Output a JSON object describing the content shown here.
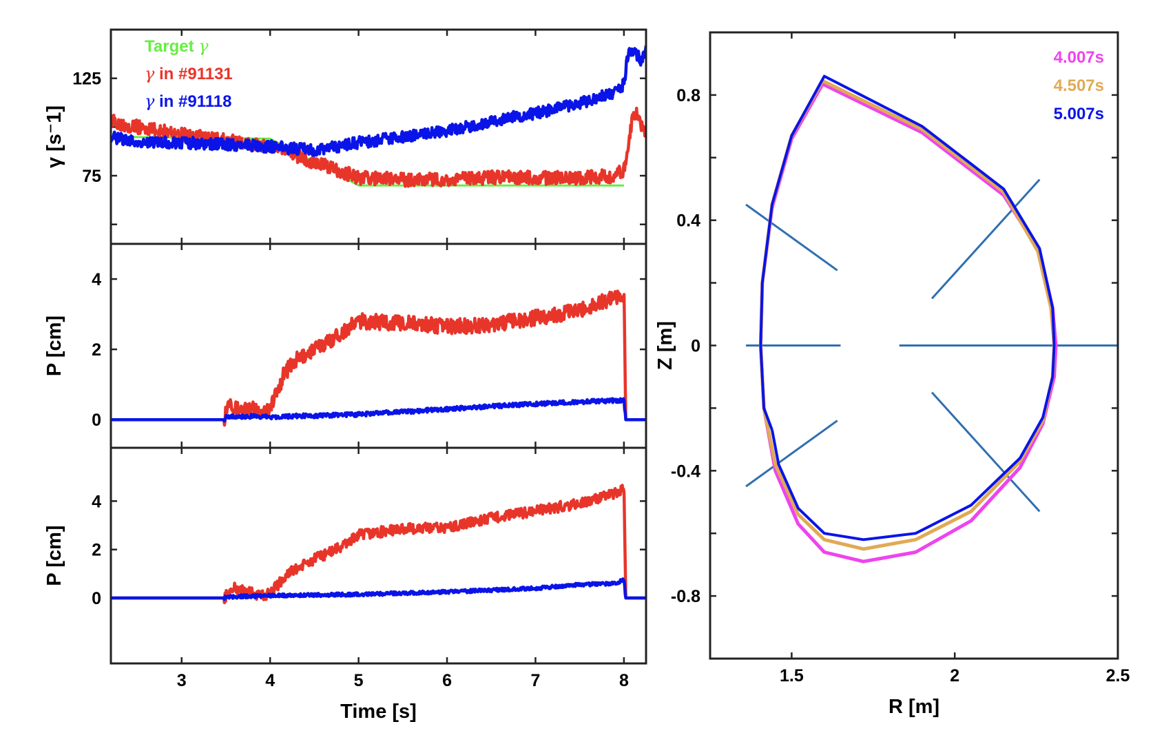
{
  "colors": {
    "red": "#e8352a",
    "blue": "#0a14e8",
    "green": "#66ee44",
    "magenta": "#ee44ee",
    "orange": "#e0aa55",
    "steel": "#2f6fb0"
  },
  "chart_data": [
    {
      "type": "line",
      "xlim": [
        2.2,
        8.25
      ],
      "ylim": [
        40,
        150
      ],
      "xticks": [],
      "yticks": [
        "75",
        "125"
      ],
      "xlabel": "",
      "ylabel": "γ [s⁻1]",
      "legend": {
        "placement": "top-left",
        "entries": [
          {
            "text": "Target",
            "symbol": "γ",
            "color": "#66ee44"
          },
          {
            "symbol": "γ",
            "text": "in #91131",
            "color": "#e8352a"
          },
          {
            "symbol": "γ",
            "text": "in #91118",
            "color": "#0a14e8"
          }
        ]
      },
      "series": [
        {
          "color": "#66ee44",
          "x": [
            2.2,
            4.0,
            4.2,
            4.5,
            4.8,
            5.0,
            8.0
          ],
          "y": [
            95,
            94,
            89,
            82,
            75,
            70,
            70
          ]
        },
        {
          "color": "#e8352a",
          "x": [
            2.2,
            2.5,
            3.0,
            3.5,
            4.0,
            4.5,
            5.0,
            5.5,
            6.0,
            6.5,
            7.0,
            7.5,
            7.9,
            8.0,
            8.05,
            8.1,
            8.15,
            8.2,
            8.25
          ],
          "y": [
            103,
            100,
            96,
            93,
            90,
            82,
            74,
            73,
            73,
            74,
            74,
            74,
            75,
            78,
            90,
            105,
            108,
            100,
            95
          ],
          "noise": 3.5
        },
        {
          "color": "#0a14e8",
          "x": [
            2.2,
            2.5,
            3.0,
            3.5,
            4.0,
            4.5,
            5.0,
            5.5,
            6.0,
            6.5,
            7.0,
            7.5,
            7.9,
            8.0,
            8.05,
            8.1,
            8.2,
            8.25
          ],
          "y": [
            95,
            92,
            92,
            91,
            90,
            88,
            92,
            95,
            98,
            103,
            107,
            112,
            118,
            122,
            138,
            140,
            134,
            140
          ],
          "noise": 3
        }
      ]
    },
    {
      "type": "line",
      "xlim": [
        2.2,
        8.25
      ],
      "ylim": [
        -0.8,
        5
      ],
      "xticks": [],
      "yticks": [
        "0",
        "2",
        "4"
      ],
      "xlabel": "",
      "ylabel": "P [cm]",
      "series": [
        {
          "color": "#e8352a",
          "x": [
            2.2,
            3.48,
            3.5,
            3.55,
            3.6,
            3.7,
            3.8,
            3.9,
            4.0,
            4.1,
            4.15,
            4.3,
            4.5,
            4.7,
            5.0,
            5.5,
            6.0,
            6.5,
            7.0,
            7.5,
            7.9,
            8.0,
            8.02,
            8.25
          ],
          "y": [
            0,
            0,
            0.3,
            0.6,
            0.3,
            0.3,
            0.3,
            0.2,
            0.35,
            0.9,
            1.3,
            1.7,
            2.0,
            2.3,
            2.8,
            2.75,
            2.65,
            2.7,
            2.9,
            3.1,
            3.5,
            3.6,
            0,
            0
          ],
          "noise": 0.22
        },
        {
          "color": "#0a14e8",
          "x": [
            2.2,
            3.48,
            3.5,
            4.0,
            5.0,
            6.0,
            7.0,
            7.5,
            7.9,
            8.0,
            8.02,
            8.25
          ],
          "y": [
            0,
            0,
            0.1,
            0.08,
            0.15,
            0.3,
            0.45,
            0.5,
            0.55,
            0.55,
            0,
            0
          ],
          "noise": 0.06
        }
      ]
    },
    {
      "type": "line",
      "xlim": [
        2.2,
        8.25
      ],
      "ylim": [
        -2.7,
        6.2
      ],
      "xticks": [
        "3",
        "4",
        "5",
        "6",
        "7",
        "8"
      ],
      "yticks": [
        "0",
        "2",
        "4"
      ],
      "xlabel": "Time [s]",
      "ylabel": "P [cm]",
      "series": [
        {
          "color": "#e8352a",
          "x": [
            2.2,
            3.48,
            3.5,
            3.6,
            3.7,
            3.8,
            3.9,
            4.0,
            4.2,
            4.5,
            4.8,
            5.0,
            5.5,
            6.0,
            6.5,
            7.0,
            7.5,
            7.9,
            8.0,
            8.02,
            8.25
          ],
          "y": [
            0,
            0,
            0.1,
            0.4,
            0.3,
            0.2,
            0.1,
            0.2,
            1.0,
            1.6,
            2.1,
            2.6,
            2.85,
            2.9,
            3.3,
            3.6,
            3.9,
            4.3,
            4.5,
            0,
            0
          ],
          "noise": 0.22
        },
        {
          "color": "#0a14e8",
          "x": [
            2.2,
            3.48,
            3.5,
            4.0,
            5.0,
            6.0,
            7.0,
            7.5,
            7.9,
            8.0,
            8.02,
            8.25
          ],
          "y": [
            0,
            0,
            0.05,
            0.1,
            0.15,
            0.25,
            0.4,
            0.55,
            0.6,
            0.75,
            0,
            0
          ],
          "noise": 0.07
        }
      ]
    },
    {
      "type": "line",
      "xlim": [
        1.25,
        2.5
      ],
      "ylim": [
        -1.0,
        1.0
      ],
      "xticks": [
        "1.5",
        "2",
        "2.5"
      ],
      "yticks": [
        "0.8",
        "0.4",
        "0",
        "-0.4",
        "-0.8"
      ],
      "xlabel": "R [m]",
      "ylabel": "Z [m]",
      "legend": {
        "placement": "top-right",
        "entries": [
          {
            "text": "4.007s",
            "color": "#ee44ee"
          },
          {
            "text": "4.507s",
            "color": "#e0aa55"
          },
          {
            "text": "5.007s",
            "color": "#0a14e8"
          }
        ]
      },
      "series": [
        {
          "color": "#ee44ee",
          "points": [
            [
              1.595,
              0.835
            ],
            [
              1.5,
              0.66
            ],
            [
              1.44,
              0.44
            ],
            [
              1.41,
              0.2
            ],
            [
              1.405,
              0.0
            ],
            [
              1.415,
              -0.2
            ],
            [
              1.45,
              -0.4
            ],
            [
              1.52,
              -0.57
            ],
            [
              1.6,
              -0.66
            ],
            [
              1.72,
              -0.69
            ],
            [
              1.88,
              -0.66
            ],
            [
              2.05,
              -0.56
            ],
            [
              2.2,
              -0.39
            ],
            [
              2.27,
              -0.25
            ],
            [
              2.305,
              -0.1
            ],
            [
              2.31,
              0.0
            ],
            [
              2.3,
              0.12
            ],
            [
              2.26,
              0.3
            ],
            [
              2.15,
              0.48
            ],
            [
              1.9,
              0.68
            ],
            [
              1.595,
              0.835
            ]
          ]
        },
        {
          "color": "#e0aa55",
          "points": [
            [
              1.595,
              0.845
            ],
            [
              1.5,
              0.67
            ],
            [
              1.44,
              0.45
            ],
            [
              1.41,
              0.2
            ],
            [
              1.405,
              0.0
            ],
            [
              1.415,
              -0.2
            ],
            [
              1.45,
              -0.38
            ],
            [
              1.52,
              -0.54
            ],
            [
              1.6,
              -0.62
            ],
            [
              1.72,
              -0.65
            ],
            [
              1.88,
              -0.62
            ],
            [
              2.05,
              -0.53
            ],
            [
              2.2,
              -0.37
            ],
            [
              2.27,
              -0.24
            ],
            [
              2.3,
              -0.1
            ],
            [
              2.305,
              0.0
            ],
            [
              2.295,
              0.12
            ],
            [
              2.255,
              0.3
            ],
            [
              2.15,
              0.49
            ],
            [
              1.9,
              0.69
            ],
            [
              1.595,
              0.845
            ]
          ]
        },
        {
          "color": "#0a14e8",
          "points": [
            [
              1.44,
              -0.27
            ],
            [
              1.46,
              -0.38
            ],
            [
              1.52,
              -0.52
            ],
            [
              1.6,
              -0.6
            ],
            [
              1.72,
              -0.62
            ],
            [
              1.88,
              -0.6
            ],
            [
              2.05,
              -0.51
            ],
            [
              2.2,
              -0.36
            ],
            [
              2.27,
              -0.23
            ],
            [
              2.3,
              -0.1
            ],
            [
              2.305,
              0.0
            ],
            [
              2.3,
              0.12
            ],
            [
              2.26,
              0.31
            ],
            [
              2.15,
              0.5
            ],
            [
              1.9,
              0.7
            ],
            [
              1.6,
              0.86
            ],
            [
              1.5,
              0.67
            ],
            [
              1.44,
              0.45
            ],
            [
              1.41,
              0.2
            ],
            [
              1.405,
              0.0
            ],
            [
              1.415,
              -0.2
            ],
            [
              1.44,
              -0.27
            ]
          ]
        }
      ],
      "segments": [
        [
          [
            1.36,
            0.0
          ],
          [
            1.65,
            0.0
          ]
        ],
        [
          [
            1.83,
            0.0
          ],
          [
            2.5,
            0.0
          ]
        ],
        [
          [
            1.36,
            0.45
          ],
          [
            1.64,
            0.24
          ]
        ],
        [
          [
            1.36,
            -0.45
          ],
          [
            1.64,
            -0.24
          ]
        ],
        [
          [
            1.93,
            0.15
          ],
          [
            2.26,
            0.53
          ]
        ],
        [
          [
            1.93,
            -0.15
          ],
          [
            2.26,
            -0.53
          ]
        ]
      ]
    }
  ]
}
